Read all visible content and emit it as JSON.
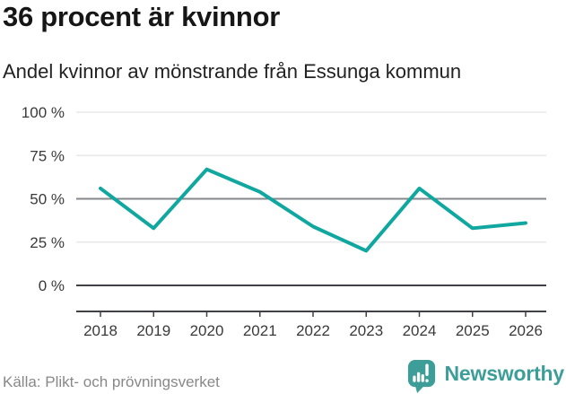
{
  "header": {
    "title": "36 procent är kvinnor",
    "subtitle": "Andel kvinnor av mönstrande från Essunga kommun"
  },
  "chart_data": {
    "type": "line",
    "categories": [
      "2018",
      "2019",
      "2020",
      "2021",
      "2022",
      "2023",
      "2024",
      "2025",
      "2026"
    ],
    "values": [
      56,
      33,
      67,
      54,
      34,
      20,
      56,
      33,
      36
    ],
    "unit": "%",
    "title": "36 procent är kvinnor",
    "xlabel": "",
    "ylabel": "",
    "ylim": [
      0,
      100
    ],
    "yticks": [
      0,
      25,
      50,
      75,
      100
    ],
    "ytick_labels": [
      "0 %",
      "25 %",
      "50 %",
      "75 %",
      "100 %"
    ],
    "grid": "horizontal",
    "legend": "none",
    "line_color": "#0fa7a0",
    "emphasized_gridlines": [
      0,
      50
    ]
  },
  "footer": {
    "source": "Källa: Plikt- och prövningsverket",
    "brand": "Newsworthy",
    "brand_color": "#3d9e99",
    "logo_icon": "bar-chart-speech-bubble"
  }
}
